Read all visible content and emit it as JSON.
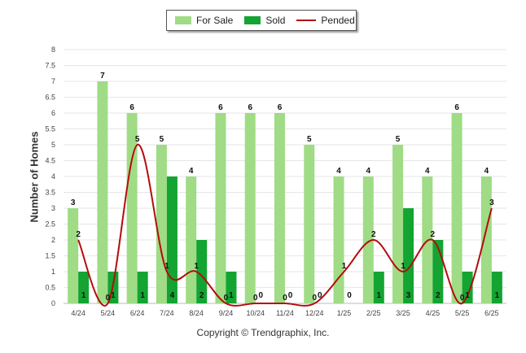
{
  "legend": [
    {
      "label": "For Sale",
      "color": "#9fdc85",
      "kind": "bar"
    },
    {
      "label": "Sold",
      "color": "#13a431",
      "kind": "bar"
    },
    {
      "label": "Pended",
      "color": "#b40c0c",
      "kind": "line"
    }
  ],
  "copyright": "Copyright © Trendgraphix, Inc.",
  "chart_data": {
    "type": "bar",
    "categories": [
      "4/24",
      "5/24",
      "6/24",
      "7/24",
      "8/24",
      "9/24",
      "10/24",
      "11/24",
      "12/24",
      "1/25",
      "2/25",
      "3/25",
      "4/25",
      "5/25",
      "6/25"
    ],
    "series": [
      {
        "name": "For Sale",
        "type": "bar",
        "color": "#9fdc85",
        "values": [
          3,
          7,
          6,
          5,
          4,
          6,
          6,
          6,
          5,
          4,
          4,
          5,
          4,
          6,
          4
        ]
      },
      {
        "name": "Sold",
        "type": "bar",
        "color": "#13a431",
        "values": [
          1,
          1,
          1,
          4,
          2,
          1,
          0,
          0,
          0,
          0,
          1,
          3,
          2,
          1,
          1
        ]
      },
      {
        "name": "Pended",
        "type": "line",
        "color": "#b40c0c",
        "values": [
          2,
          0,
          5,
          1,
          1,
          0,
          0,
          0,
          0,
          1,
          2,
          1,
          2,
          0,
          3
        ]
      }
    ],
    "ylabel": "Number of Homes",
    "xlabel": "",
    "ylim": [
      0,
      8
    ],
    "yticks": [
      "0",
      "0.5",
      "1",
      "1.5",
      "2",
      "2.5",
      "3",
      "3.5",
      "4",
      "4.5",
      "5",
      "5.5",
      "6",
      "6.5",
      "7",
      "7.5",
      "8"
    ],
    "grid": true,
    "legend_position": "top"
  }
}
